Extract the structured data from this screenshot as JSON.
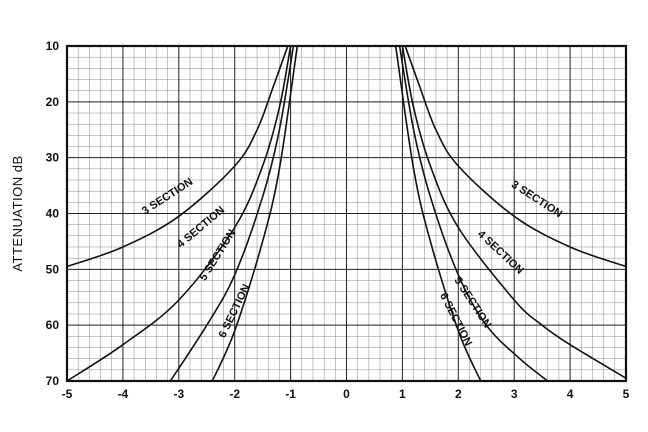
{
  "chart_data": {
    "type": "line",
    "title": "",
    "xlabel": "",
    "ylabel": "ATTENUATION  dB",
    "xlim": [
      -5,
      5
    ],
    "ylim": [
      10,
      70
    ],
    "y_inverted": true,
    "grid": true,
    "x_ticks": [
      "-5",
      "-4",
      "-3",
      "-2",
      "-1",
      "0",
      "1",
      "2",
      "3",
      "4",
      "5"
    ],
    "y_ticks": [
      "10",
      "20",
      "30",
      "40",
      "50",
      "60",
      "70"
    ],
    "series": [
      {
        "name": "3 SECTION",
        "x": [
          -5,
          -4,
          -3,
          -2,
          -1.6,
          -1.3,
          -1.05
        ],
        "y": [
          49.5,
          46,
          40.5,
          31.5,
          25,
          17,
          10
        ]
      },
      {
        "name": "4 SECTION",
        "x": [
          -5,
          -4,
          -3,
          -2,
          -1.5,
          -1.2,
          -1.0
        ],
        "y": [
          70,
          63.5,
          55.5,
          42.5,
          31.5,
          21,
          10
        ]
      },
      {
        "name": "5 SECTION",
        "x": [
          -3.15,
          -2.5,
          -2,
          -1.5,
          -1.2,
          -0.95
        ],
        "y": [
          70,
          60,
          51,
          37,
          25,
          10
        ]
      },
      {
        "name": "6 SECTION",
        "x": [
          -2.4,
          -2,
          -1.5,
          -1.2,
          -0.88
        ],
        "y": [
          70,
          61,
          45,
          32,
          10
        ]
      },
      {
        "name": "3 SECTION",
        "x": [
          1.05,
          1.3,
          1.6,
          2,
          3,
          4,
          5
        ],
        "y": [
          10,
          17,
          25,
          31.5,
          40.5,
          46,
          49.5
        ]
      },
      {
        "name": "4 SECTION",
        "x": [
          1.0,
          1.2,
          1.5,
          2,
          3,
          3.5,
          4,
          5
        ],
        "y": [
          10,
          21,
          31.5,
          42.5,
          55.5,
          60,
          63.5,
          69.5
        ]
      },
      {
        "name": "5 SECTION",
        "x": [
          0.95,
          1.2,
          1.5,
          2,
          2.5,
          3.1,
          3.6
        ],
        "y": [
          10,
          25,
          37,
          51,
          60,
          66,
          70
        ]
      },
      {
        "name": "6 SECTION",
        "x": [
          0.88,
          1.2,
          1.5,
          2,
          2.4
        ],
        "y": [
          10,
          32,
          45,
          61,
          70
        ]
      }
    ]
  }
}
